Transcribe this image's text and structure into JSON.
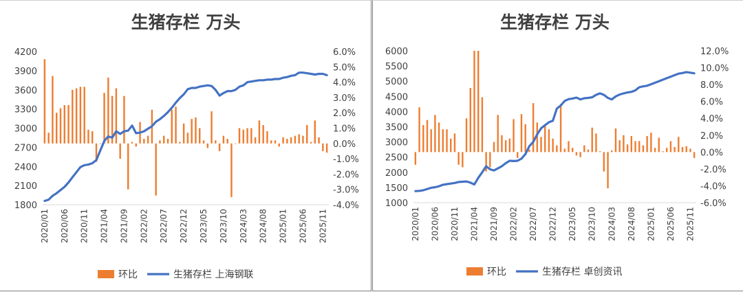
{
  "colors": {
    "bar": "#ed7d31",
    "line": "#4472c4",
    "axis": "#d9d9d9",
    "text": "#404040"
  },
  "chart_data": [
    {
      "type": "bar",
      "title": "生猪存栏 万头",
      "x_tick_labels": [
        "2020/01",
        "2020/06",
        "2020/11",
        "2021/04",
        "2021/09",
        "2022/02",
        "2022/07",
        "2022/12",
        "2023/05",
        "2023/10",
        "2024/03",
        "2024/08",
        "2025/01",
        "2025/06",
        "2025/11"
      ],
      "y_left": {
        "min": 1800,
        "max": 4200,
        "ticks": [
          "1800",
          "2100",
          "2400",
          "2700",
          "3000",
          "3300",
          "3600",
          "3900",
          "4200"
        ]
      },
      "y_right": {
        "min": -4.0,
        "max": 6.0,
        "ticks": [
          "-4.0%",
          "-3.0%",
          "-2.0%",
          "-1.0%",
          "0.0%",
          "1.0%",
          "2.0%",
          "3.0%",
          "4.0%",
          "5.0%",
          "6.0%"
        ]
      },
      "legend": [
        "环比",
        "生猪存栏 上海钢联"
      ],
      "series": [
        {
          "name": "环比",
          "type": "bar",
          "axis": "right",
          "values": [
            5.5,
            0.7,
            4.4,
            2.0,
            2.3,
            2.5,
            2.5,
            3.5,
            3.6,
            3.7,
            3.7,
            0.9,
            0.8,
            -1.2,
            0.0,
            3.3,
            4.3,
            3.1,
            3.6,
            -1.0,
            3.1,
            -3.0,
            0.1,
            -0.2,
            1.4,
            0.3,
            0.5,
            2.2,
            -3.4,
            0.2,
            0.5,
            0.3,
            2.2,
            2.4,
            0.1,
            1.3,
            0.7,
            1.6,
            1.7,
            1.0,
            0.2,
            -0.3,
            2.1,
            0.2,
            -0.5,
            0.5,
            0.3,
            -3.5,
            0.0,
            1.0,
            0.9,
            1.0,
            1.0,
            0.4,
            1.5,
            1.2,
            0.8,
            0.2,
            0.2,
            -0.2,
            0.4,
            0.3,
            0.4,
            0.5,
            0.6,
            0.5,
            1.2,
            0.1,
            1.5,
            0.4,
            -0.5,
            -0.6
          ]
        },
        {
          "name": "生猪存栏 上海钢联",
          "type": "line",
          "axis": "left",
          "values": [
            1860,
            1880,
            1940,
            1980,
            2030,
            2080,
            2150,
            2230,
            2310,
            2390,
            2420,
            2430,
            2450,
            2500,
            2650,
            2800,
            2870,
            2850,
            2950,
            2910,
            2950,
            2960,
            3040,
            2920,
            2930,
            2950,
            2990,
            3030,
            3100,
            3140,
            3190,
            3250,
            3320,
            3400,
            3470,
            3530,
            3610,
            3630,
            3630,
            3650,
            3660,
            3670,
            3660,
            3600,
            3510,
            3550,
            3580,
            3580,
            3600,
            3650,
            3670,
            3720,
            3730,
            3740,
            3750,
            3750,
            3760,
            3760,
            3770,
            3770,
            3790,
            3800,
            3820,
            3830,
            3870,
            3870,
            3860,
            3850,
            3840,
            3850,
            3850,
            3830
          ]
        }
      ]
    },
    {
      "type": "bar",
      "title": "生猪存栏 万头",
      "x_tick_labels": [
        "2020/01",
        "2020/06",
        "2020/11",
        "2021/04",
        "2021/09",
        "2022/02",
        "2022/07",
        "2022/12",
        "2023/05",
        "2023/10",
        "2024/03",
        "2024/08",
        "2025/01",
        "2025/06",
        "2025/11"
      ],
      "y_left": {
        "min": 1000,
        "max": 6000,
        "ticks": [
          "1000",
          "1500",
          "2000",
          "2500",
          "3000",
          "3500",
          "4000",
          "4500",
          "5000",
          "5500",
          "6000"
        ]
      },
      "y_right": {
        "min": -6.0,
        "max": 12.0,
        "ticks": [
          "-6.0%",
          "-4.0%",
          "-2.0%",
          "0.0%",
          "2.0%",
          "4.0%",
          "6.0%",
          "8.0%",
          "10.0%",
          "12.0%"
        ]
      },
      "legend": [
        "环比",
        "生猪存栏 卓创资讯"
      ],
      "series": [
        {
          "name": "环比",
          "type": "bar",
          "axis": "right",
          "values": [
            -1.5,
            5.3,
            3.2,
            3.8,
            2.7,
            4.4,
            3.5,
            2.7,
            2.7,
            1.6,
            2.2,
            -1.5,
            -1.8,
            4.0,
            7.6,
            12.0,
            12.0,
            6.5,
            -2.3,
            -1.8,
            1.2,
            4.4,
            2.0,
            1.4,
            1.6,
            3.9,
            -0.7,
            4.5,
            3.3,
            0.3,
            5.8,
            3.5,
            1.8,
            3.3,
            2.7,
            1.6,
            0.8,
            5.7,
            0.4,
            1.3,
            0.5,
            -0.4,
            -0.6,
            0.8,
            0.3,
            2.9,
            2.2,
            0.1,
            -2.3,
            -4.3,
            0.2,
            2.8,
            1.4,
            2.0,
            0.9,
            1.9,
            1.3,
            1.3,
            0.8,
            1.9,
            2.3,
            0.5,
            1.7,
            0.1,
            0.5,
            1.3,
            0.6,
            1.8,
            0.6,
            0.7,
            0.4,
            -0.7
          ]
        },
        {
          "name": "生猪存栏 卓创资讯",
          "type": "line",
          "axis": "left",
          "values": [
            1380,
            1390,
            1410,
            1450,
            1490,
            1510,
            1540,
            1590,
            1610,
            1630,
            1650,
            1680,
            1690,
            1700,
            1660,
            1600,
            1820,
            2000,
            2200,
            2100,
            2060,
            2130,
            2200,
            2300,
            2380,
            2370,
            2380,
            2450,
            2600,
            2860,
            3000,
            3250,
            3450,
            3550,
            3650,
            3700,
            4100,
            4200,
            4350,
            4410,
            4430,
            4460,
            4400,
            4440,
            4450,
            4470,
            4550,
            4600,
            4550,
            4450,
            4400,
            4500,
            4560,
            4600,
            4630,
            4650,
            4700,
            4800,
            4830,
            4850,
            4900,
            4950,
            5000,
            5050,
            5100,
            5150,
            5200,
            5250,
            5270,
            5300,
            5280,
            5260
          ]
        }
      ]
    }
  ]
}
